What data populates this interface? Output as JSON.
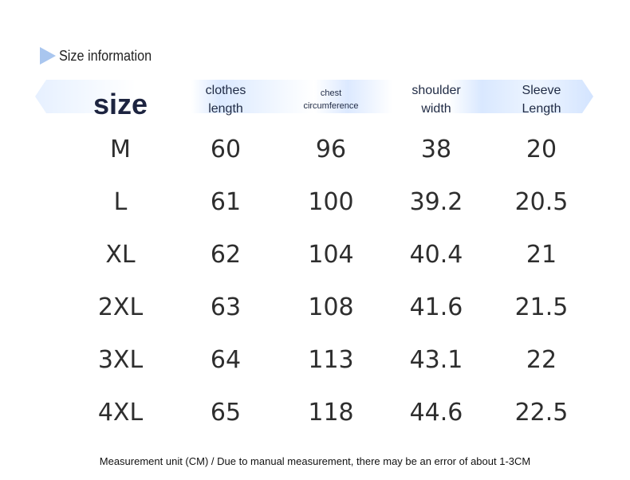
{
  "title": "Size information",
  "headers": [
    {
      "label": "size"
    },
    {
      "label": "clothes\nlength"
    },
    {
      "label": "chest\ncircumference"
    },
    {
      "label": "shoulder\nwidth"
    },
    {
      "label": "Sleeve\nLength"
    }
  ],
  "rows": [
    [
      "M",
      "60",
      "96",
      "38",
      "20"
    ],
    [
      "L",
      "61",
      "100",
      "39.2",
      "20.5"
    ],
    [
      "XL",
      "62",
      "104",
      "40.4",
      "21"
    ],
    [
      "2XL",
      "63",
      "108",
      "41.6",
      "21.5"
    ],
    [
      "3XL",
      "64",
      "113",
      "43.1",
      "22"
    ],
    [
      "4XL",
      "65",
      "118",
      "44.6",
      "22.5"
    ]
  ],
  "footnote": "Measurement unit (CM) / Due to manual measurement, there may be an error of about 1-3CM",
  "colors": {
    "accent": "#a9c6ef",
    "header_band": "#dbe9ff",
    "text": "#2e2e2e"
  }
}
